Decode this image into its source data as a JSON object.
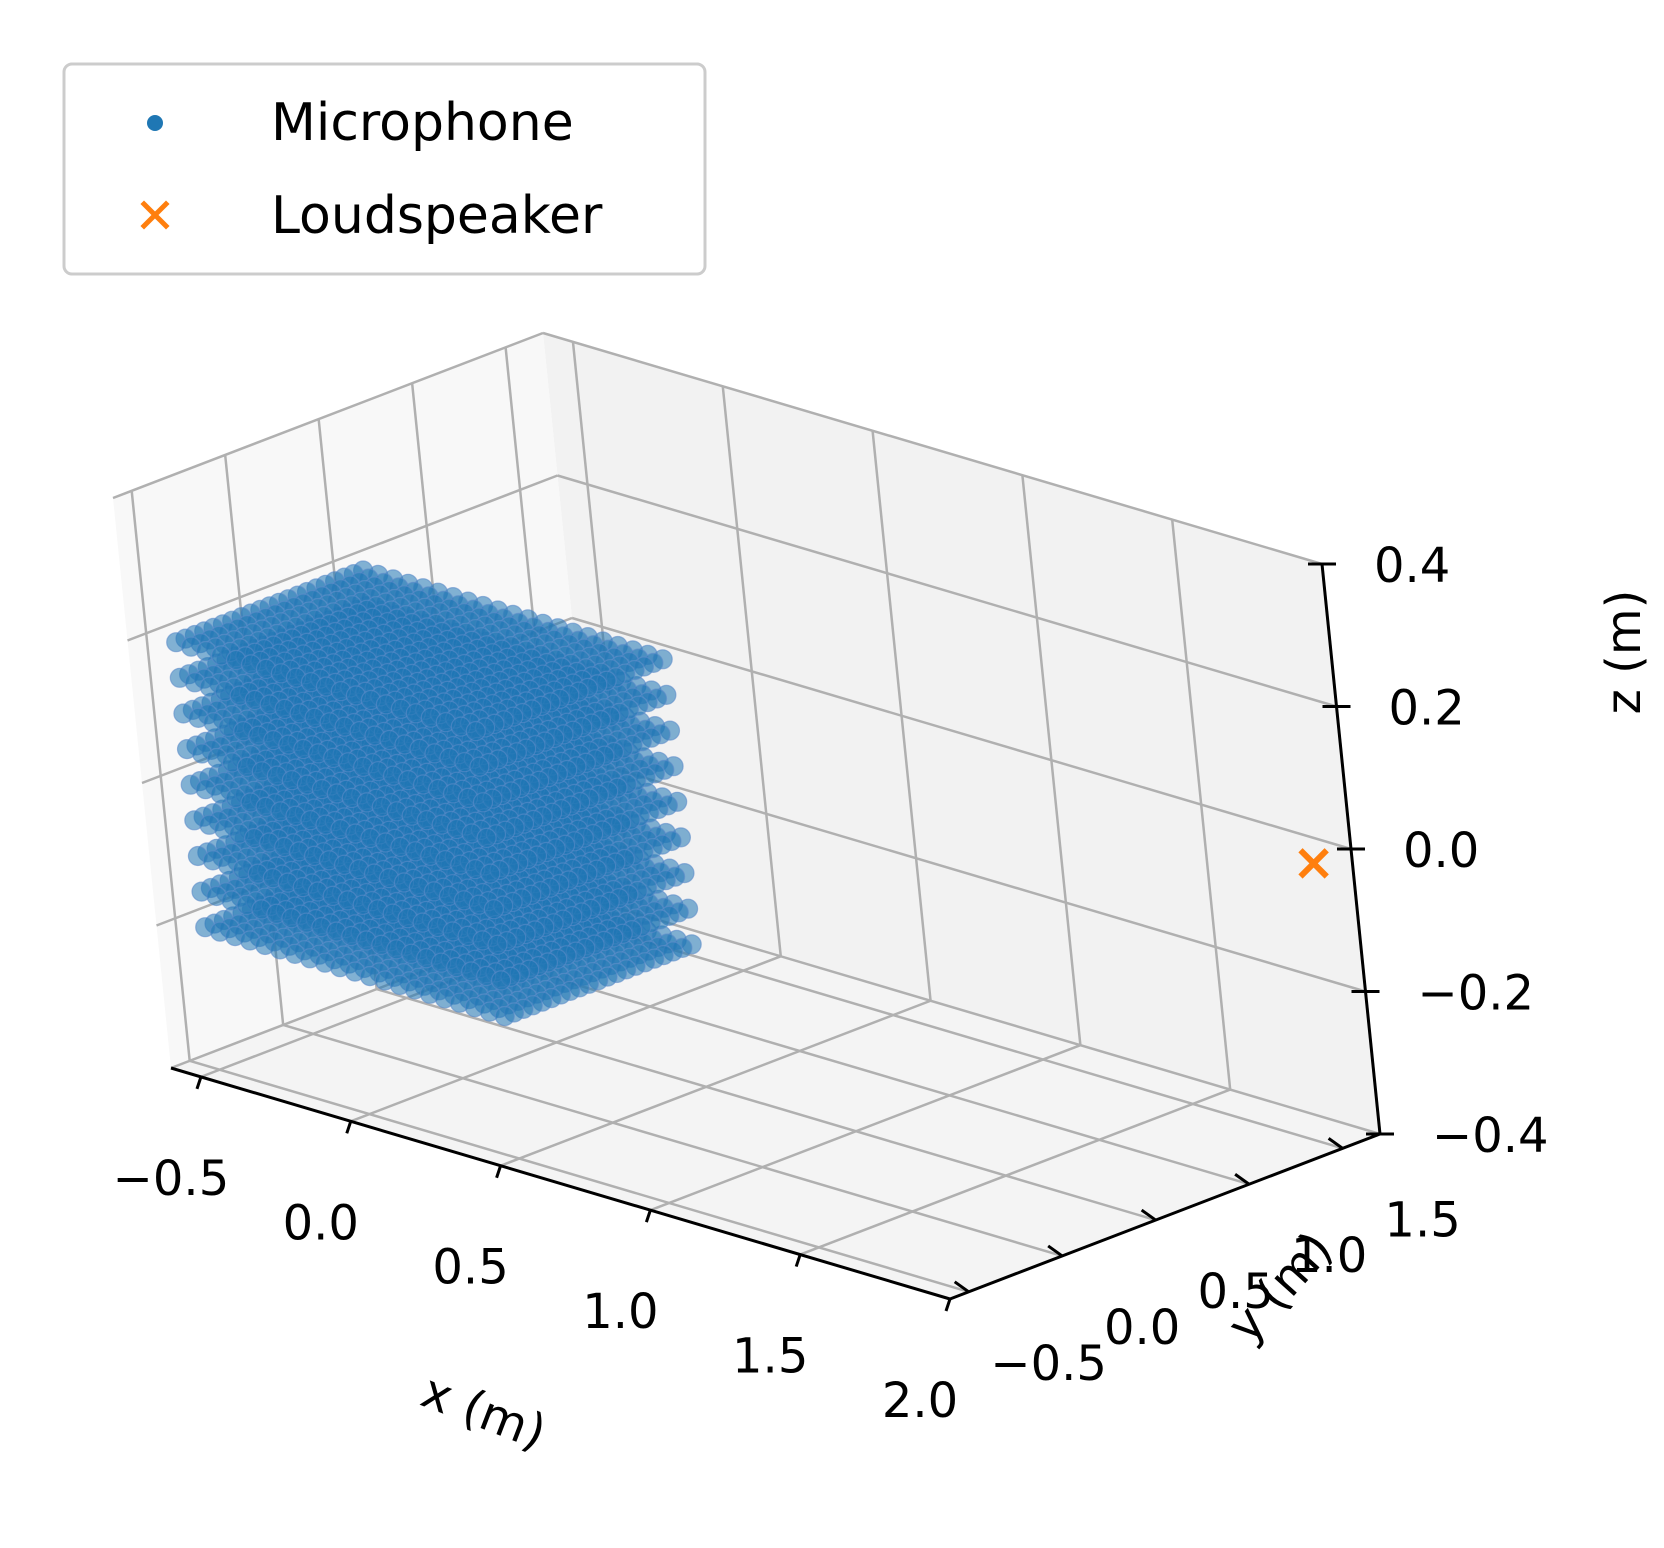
{
  "chart_data": {
    "type": "scatter",
    "projection": "3d",
    "xlabel": "x (m)",
    "ylabel": "y (m)",
    "zlabel": "z (m)",
    "xlim": [
      -0.6,
      2.0
    ],
    "ylim": [
      -0.6,
      1.7
    ],
    "zlim": [
      -0.4,
      0.4
    ],
    "x_ticks": [
      "−0.5",
      "0.0",
      "0.5",
      "1.0",
      "1.5",
      "2.0"
    ],
    "y_ticks": [
      "−0.5",
      "0.0",
      "0.5",
      "1.0",
      "1.5"
    ],
    "z_ticks": [
      "−0.4",
      "−0.2",
      "0.0",
      "0.2",
      "0.4"
    ],
    "grid": true,
    "legend": {
      "placement": "upper-left",
      "entries": [
        {
          "label": "Microphone",
          "marker": "circle",
          "color": "#1f77b4"
        },
        {
          "label": "Loudspeaker",
          "marker": "x",
          "color": "#ff7f0e"
        }
      ]
    },
    "series": [
      {
        "name": "Microphone",
        "marker": "circle",
        "color": "#1f77b4",
        "grid_points": {
          "x": {
            "min": -0.5,
            "max": 0.5,
            "count": 21
          },
          "y": {
            "min": -0.5,
            "max": 0.5,
            "count": 21
          },
          "z": {
            "min": -0.2,
            "max": 0.2,
            "count": 9
          }
        }
      },
      {
        "name": "Loudspeaker",
        "marker": "x",
        "color": "#ff7f0e",
        "points": [
          {
            "x": 2.0,
            "y": 1.5,
            "z": 0.0
          }
        ]
      }
    ]
  }
}
